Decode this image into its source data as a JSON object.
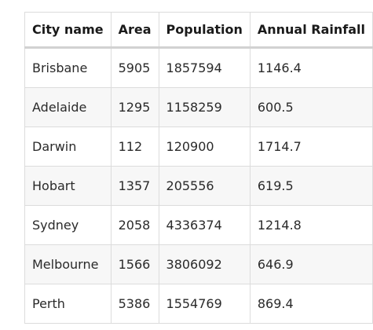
{
  "table": {
    "headers": [
      "City name",
      "Area",
      "Population",
      "Annual Rainfall"
    ],
    "rows": [
      [
        "Brisbane",
        "5905",
        "1857594",
        "1146.4"
      ],
      [
        "Adelaide",
        "1295",
        "1158259",
        "600.5"
      ],
      [
        "Darwin",
        "112",
        "120900",
        "1714.7"
      ],
      [
        "Hobart",
        "1357",
        "205556",
        "619.5"
      ],
      [
        "Sydney",
        "2058",
        "4336374",
        "1214.8"
      ],
      [
        "Melbourne",
        "1566",
        "3806092",
        "646.9"
      ],
      [
        "Perth",
        "5386",
        "1554769",
        "869.4"
      ]
    ]
  }
}
